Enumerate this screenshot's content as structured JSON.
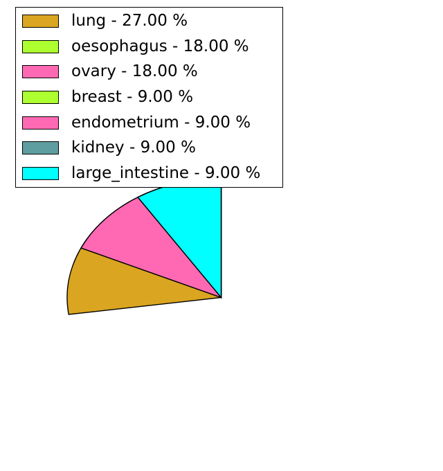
{
  "figure": {
    "background": "#ffffff"
  },
  "chart_data": {
    "type": "pie",
    "title": "",
    "slices": [
      {
        "label": "lung",
        "value": 27.0,
        "color": "#DAA520",
        "legend_label": "lung - 27.00 %"
      },
      {
        "label": "oesophagus",
        "value": 18.0,
        "color": "#ADFF2F",
        "legend_label": "oesophagus - 18.00 %"
      },
      {
        "label": "ovary",
        "value": 18.0,
        "color": "#FF69B4",
        "legend_label": "ovary - 18.00 %"
      },
      {
        "label": "breast",
        "value": 9.0,
        "color": "#ADFF2F",
        "legend_label": "breast - 9.00 %"
      },
      {
        "label": "endometrium",
        "value": 9.0,
        "color": "#FF69B4",
        "legend_label": "endometrium - 9.00 %"
      },
      {
        "label": "kidney",
        "value": 9.0,
        "color": "#5F9EA0",
        "legend_label": "kidney - 9.00 %"
      },
      {
        "label": "large_intestine",
        "value": 9.0,
        "color": "#00FFFF",
        "legend_label": "large_intestine - 9.00 %"
      }
    ],
    "start_angle": 90,
    "direction": "counterclockwise",
    "normalize": true,
    "edge_color": "#000000",
    "legend_position": "upper left",
    "legend_background": "#ffffff",
    "legend_border_color": "#000000"
  }
}
